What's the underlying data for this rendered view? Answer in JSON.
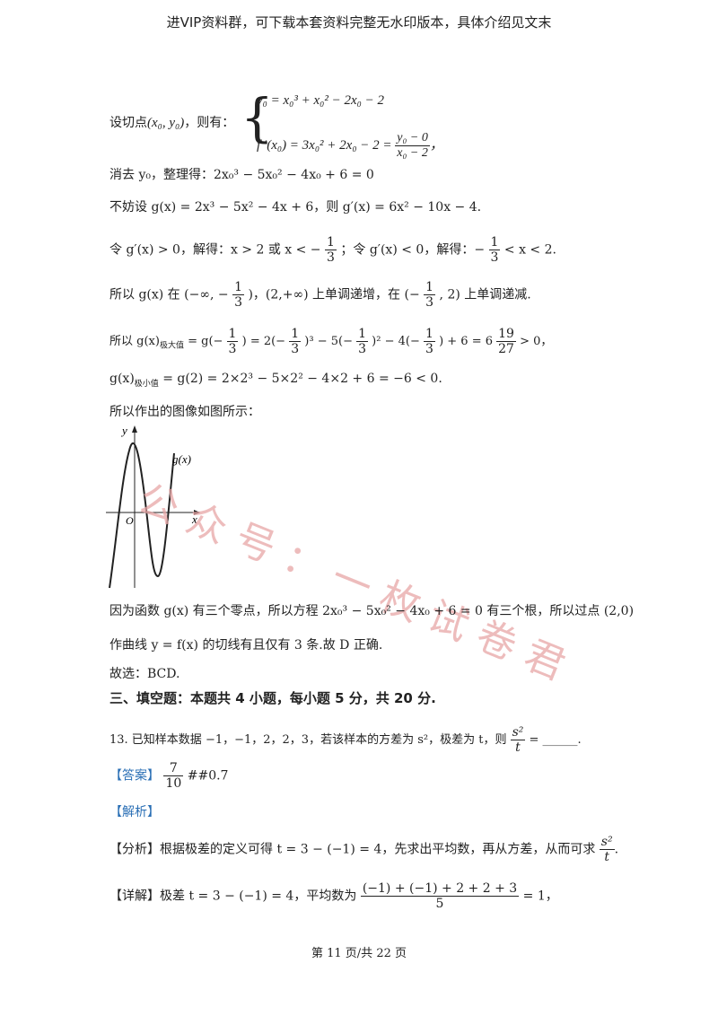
{
  "header": {
    "text": "进VIP资料群，可下载本套资料完整无水印版本，具体介绍见文末"
  },
  "lines": {
    "l1_label": "设切点",
    "l1_point": "(x₀, y₀)",
    "l1_then": "，则有：",
    "l1_eq1": "y₀ = x₀³ + x₀² − 2x₀ − 2",
    "l1_eq2a": "f ′(x₀) = 3x₀² + 2x₀ − 2 =",
    "l1_eq2_num": "y₀ − 0",
    "l1_eq2_den": "x₀ − 2",
    "l1_tail": "，",
    "l2": "消去 y₀，整理得：2x₀³ − 5x₀² − 4x₀ + 6 = 0",
    "l3": "不妨设 g(x) = 2x³ − 5x² − 4x + 6，则 g′(x) = 6x² − 10x − 4.",
    "l4a": "令 g′(x) > 0，解得：x > 2 或 x < −",
    "l4b": "；令 g′(x) < 0，解得：−",
    "l4c": "< x < 2.",
    "frac_1": "1",
    "frac_3": "3",
    "l5a": "所以 g(x) 在",
    "l5b": "(−∞, −",
    "l5c": ")，(2,+∞) 上单调递增，在",
    "l5d": "(−",
    "l5e": ", 2)",
    "l5f": "上单调递减.",
    "l6a": "所以 g(x)",
    "l6_sub": "极大值",
    "l6b": "= g(−",
    "l6c": ") = 2(−",
    "l6d": ")³ − 5(−",
    "l6e": ")² − 4(−",
    "l6f": ") + 6 = 6",
    "l6_num": "19",
    "l6_den": "27",
    "l6g": "> 0，",
    "l7a": "g(x)",
    "l7_sub": "极小值",
    "l7b": "= g(2) = 2×2³ − 5×2² − 4×2 + 6 = −6 < 0.",
    "l8": "所以作出的图像如图所示：",
    "l9": "因为函数 g(x) 有三个零点，所以方程 2x₀³ − 5x₀² − 4x₀ + 6 = 0 有三个根，所以过点 (2,0)",
    "l10": "作曲线 y = f(x) 的切线有且仅有 3 条.故 D 正确.",
    "l11": "故选：BCD.",
    "section": "三、填空题：本题共 4 小题，每小题 5 分，共 20 分.",
    "q13a": "13. 已知样本数据 −1，−1，2，2，3，若该样本的方差为 s²，极差为 t，则",
    "q13_num": "s²",
    "q13_den": "t",
    "q13b": "= ______.",
    "ans_label": "【答案】",
    "ans_num": "7",
    "ans_den": "10",
    "ans_tail": "##0.7",
    "jiexi": "【解析】",
    "fenxi_label": "【分析】",
    "fenxi": "根据极差的定义可得 t = 3 − (−1) = 4，先求出平均数，再从方差，从而可求",
    "fenxi_num": "s²",
    "fenxi_den": "t",
    "fenxi_end": ".",
    "xiangjie_label": "【详解】",
    "xiangjie": "极差 t = 3 − (−1) = 4，平均数为",
    "xj_num": "(−1) + (−1) + 2 + 2 + 3",
    "xj_den": "5",
    "xj_tail": "= 1，"
  },
  "graph": {
    "y_label": "y",
    "x_label": "x",
    "o_label": "O",
    "curve_label": "g(x)"
  },
  "watermark": {
    "text": "公众号：一枚试卷君"
  },
  "footer": {
    "text": "第 11 页/共 22 页"
  },
  "colors": {
    "answer_blue": "#2a6fb5",
    "watermark": "#e8a6a6"
  }
}
